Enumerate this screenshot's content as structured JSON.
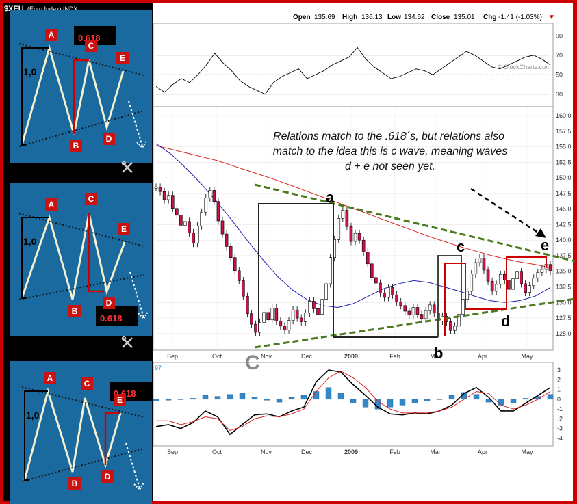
{
  "header": {
    "symbol": "$XEU",
    "symbol_sub": "(Euro Index)  INDX",
    "open_label": "Open",
    "open": "135.69",
    "high_label": "High",
    "high": "136.13",
    "low_label": "Low",
    "low": "134.62",
    "close_label": "Close",
    "close": "135.01",
    "chg_label": "Chg",
    "chg": "-1.41 (-1.03%)",
    "watermark": "© StockCharts.com",
    "macd_tag": "97"
  },
  "annotation": {
    "lines": [
      "Relations match to the .618´s, but relations also",
      "match to the idea this is c wave, meaning waves",
      "d + e not seen yet."
    ]
  },
  "wave_labels": {
    "a": "a",
    "b": "b",
    "c": "c",
    "d": "d",
    "e": "e",
    "C": "C"
  },
  "panels": [
    {
      "labels": {
        "A": "A",
        "B": "B",
        "C": "C",
        "D": "D",
        "E": "E",
        "ratio": "1,0",
        "fib": "0.618"
      }
    },
    {
      "labels": {
        "A": "A",
        "B": "B",
        "C": "C",
        "D": "D",
        "E": "E",
        "ratio": "1,0",
        "fib": "0.618"
      }
    },
    {
      "labels": {
        "A": "A",
        "B": "B",
        "C": "C",
        "D": "D",
        "E": "E",
        "ratio": "1,0",
        "fib": "0.618"
      }
    }
  ],
  "tool_icons": [
    "tools-icon",
    "tools-icon"
  ],
  "colors": {
    "frame": "#cc0000",
    "panel_bg": "#1a6aa0",
    "trend_green": "#4a7a1e",
    "ma_red": "#dd2222",
    "ma_blue": "#2222aa",
    "candle_up": "#ffffff",
    "candle_down": "#cc1144",
    "histogram": "#3388cc"
  },
  "chart_data": [
    {
      "type": "line",
      "panel": "rsi",
      "ylim": [
        20,
        100
      ],
      "y_ticks": [
        30,
        50,
        70,
        90
      ],
      "levels": [
        30,
        50,
        70
      ],
      "series": [
        {
          "values": [
            38,
            32,
            40,
            46,
            42,
            50,
            60,
            72,
            62,
            54,
            44,
            38,
            34,
            30,
            42,
            48,
            52,
            56,
            46,
            50,
            54,
            60,
            64,
            68,
            78,
            66,
            58,
            52,
            46,
            48,
            52,
            56,
            54,
            50,
            56,
            62,
            68,
            74,
            70,
            64,
            58,
            56,
            60,
            64,
            68,
            70,
            66,
            60
          ]
        }
      ]
    },
    {
      "type": "candlestick",
      "panel": "price",
      "ylim": [
        123,
        161
      ],
      "y_ticks": [
        125.0,
        127.5,
        130.0,
        132.5,
        135.0,
        137.5,
        140.0,
        142.5,
        145.0,
        147.5,
        150.0,
        152.5,
        155.0,
        157.5,
        160.0
      ],
      "x_ticks": [
        "Sep",
        "Oct",
        "Nov",
        "Dec",
        "2009",
        "Feb",
        "Mar",
        "Apr",
        "May"
      ],
      "closes": [
        148.5,
        147.8,
        146.5,
        147.2,
        145.1,
        144.0,
        142.4,
        143.0,
        141.2,
        139.5,
        142.3,
        144.5,
        146.8,
        148.0,
        146.2,
        143.1,
        141.0,
        139.0,
        137.2,
        135.1,
        133.5,
        131.0,
        128.2,
        126.5,
        125.2,
        126.8,
        128.4,
        127.2,
        129.1,
        127.0,
        126.2,
        125.6,
        127.1,
        128.8,
        127.5,
        126.9,
        128.3,
        130.2,
        129.0,
        128.1,
        130.5,
        133.0,
        137.2,
        140.1,
        143.5,
        144.8,
        142.2,
        139.8,
        141.1,
        140.0,
        138.1,
        136.2,
        134.0,
        133.1,
        131.5,
        130.8,
        132.4,
        131.2,
        130.1,
        129.5,
        128.6,
        128.0,
        129.2,
        128.1,
        127.4,
        128.7,
        129.6,
        128.3,
        127.0,
        127.8,
        126.9,
        125.5,
        126.2,
        128.1,
        130.5,
        131.8,
        134.6,
        136.4,
        137.1,
        135.2,
        133.4,
        131.8,
        132.9,
        134.5,
        133.6,
        132.1,
        133.8,
        134.9,
        133.0,
        131.6,
        132.7,
        133.9,
        134.8,
        135.3,
        136.1,
        135.0
      ],
      "ma_red": [
        155.2,
        154.6,
        154.0,
        153.4,
        152.8,
        152.0,
        151.2,
        150.4,
        149.6,
        148.7,
        147.8,
        146.9,
        146.0,
        145.1,
        144.2,
        143.3,
        142.4,
        141.5,
        140.6,
        139.8,
        139.0,
        138.3,
        137.6,
        137.0,
        136.5,
        136.1,
        135.6
      ],
      "ma_blue": [
        155.5,
        153.8,
        151.5,
        149.0,
        146.2,
        143.2,
        140.0,
        137.0,
        134.2,
        132.0,
        130.4,
        129.5,
        129.2,
        129.8,
        131.0,
        132.2,
        133.0,
        133.5,
        133.2,
        132.5,
        131.8,
        131.0,
        130.3,
        130.0,
        130.3,
        131.0,
        132.4
      ]
    },
    {
      "type": "line",
      "panel": "macd",
      "ylim": [
        -4.5,
        3.5
      ],
      "y_ticks": [
        -4,
        -3,
        -2,
        -1,
        0,
        1,
        2,
        3
      ],
      "series": [
        {
          "values": [
            -2.8,
            -2.6,
            -3.0,
            -2.4,
            -1.2,
            -1.8,
            -3.6,
            -2.6,
            -1.6,
            -1.5,
            -1.8,
            -1.2,
            -0.8,
            1.8,
            3.0,
            2.8,
            1.5,
            0.4,
            -0.8,
            -1.5,
            -1.6,
            -1.4,
            -1.5,
            -1.2,
            -0.6,
            0.6,
            1.2,
            0.2,
            -1.2,
            -1.2,
            -0.4,
            0.4,
            1.2
          ]
        },
        {
          "values": [
            -2.2,
            -2.2,
            -2.6,
            -2.3,
            -1.8,
            -2.0,
            -3.2,
            -2.8,
            -2.0,
            -1.7,
            -1.8,
            -1.5,
            -1.0,
            0.8,
            2.2,
            2.9,
            2.2,
            1.2,
            -0.2,
            -1.0,
            -1.4,
            -1.4,
            -1.4,
            -1.2,
            -0.8,
            0.0,
            0.8,
            0.6,
            -0.6,
            -1.0,
            -0.6,
            0.0,
            0.8
          ]
        }
      ],
      "histogram": [
        -0.2,
        -0.1,
        0.0,
        0.1,
        0.4,
        0.3,
        0.5,
        0.6,
        0.2,
        -0.1,
        -0.3,
        0.2,
        0.4,
        0.8,
        1.2,
        0.6,
        -0.4,
        -0.8,
        -1.0,
        -0.8,
        -0.6,
        -0.4,
        -0.2,
        0.0,
        0.4,
        0.7,
        0.5,
        -0.3,
        -0.6,
        -0.4,
        0.1,
        0.3,
        0.5
      ]
    }
  ]
}
